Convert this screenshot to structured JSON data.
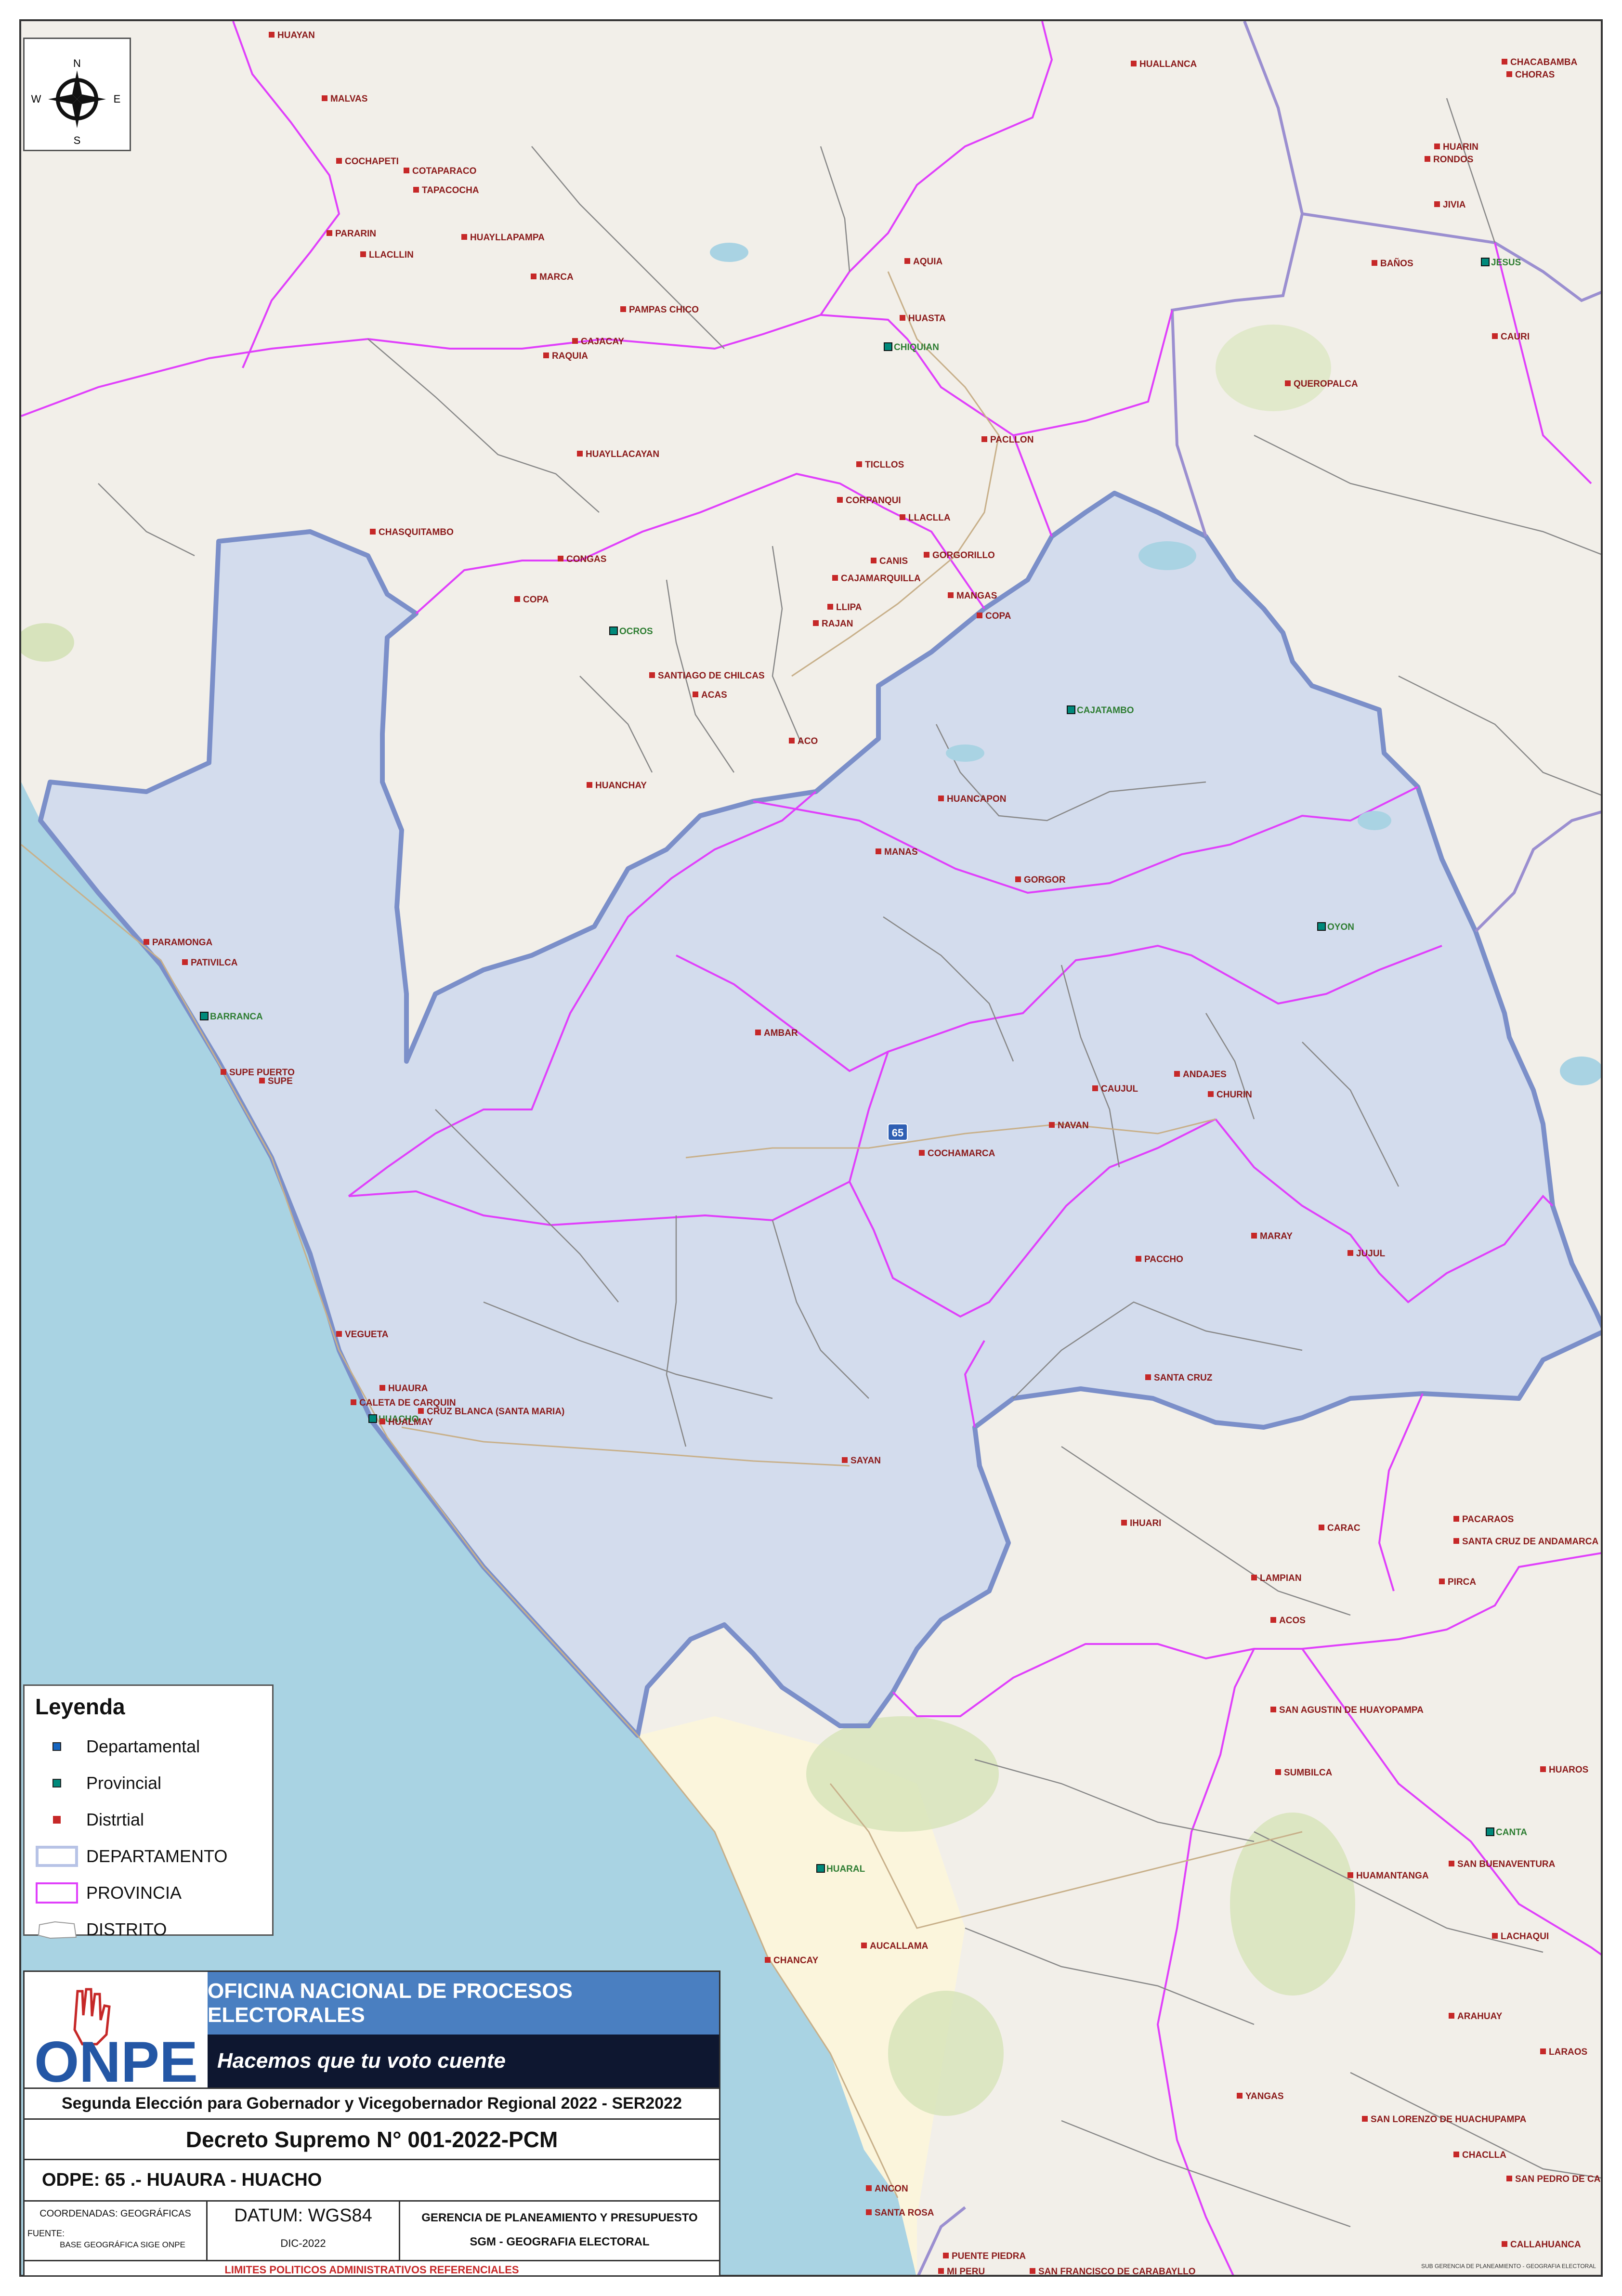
{
  "compass": {
    "n": "N",
    "s": "S",
    "e": "E",
    "w": "W"
  },
  "places": {
    "huayan": "HUAYAN",
    "malvas": "MALVAS",
    "cochapeti": "COCHAPETI",
    "cotaparaco": "COTAPARACO",
    "tapacocha": "TAPACOCHA",
    "pararin": "PARARIN",
    "llacllin": "LLACLLIN",
    "huayllapampa": "HUAYLLAPAMPA",
    "marca": "MARCA",
    "pampas_chico": "PAMPAS CHICO",
    "cajacay": "CAJACAY",
    "raquia": "RAQUIA",
    "huayllacayan": "HUAYLLACAYAN",
    "chasquitambo": "CHASQUITAMBO",
    "congas": "CONGAS",
    "copa_w": "COPA",
    "ocros": "OCROS",
    "santiago_chilcas": "SANTIAGO DE CHILCAS",
    "acas": "ACAS",
    "aco": "ACO",
    "huanchay": "HUANCHAY",
    "huallanca": "HUALLANCA",
    "aquia": "AQUIA",
    "huasta": "HUASTA",
    "chiquian": "CHIQUIAN",
    "pacllon": "PACLLON",
    "ticllos": "TICLLOS",
    "corpanqui": "CORPANQUI",
    "llaclla": "LLACLLA",
    "canis": "CANIS",
    "gorgorillo": "GORGORILLO",
    "cajamarquilla": "CAJAMARQUILLA",
    "mangas": "MANGAS",
    "copa_e": "COPA",
    "llipa": "LLIPA",
    "rajan": "RAJAN",
    "cajatambo": "CAJATAMBO",
    "huancapon": "HUANCAPON",
    "manas": "MANAS",
    "gorgor": "GORGOR",
    "oyon": "OYON",
    "chacabamba": "CHACABAMBA",
    "choras": "CHORAS",
    "huarin": "HUARIN",
    "rondos": "RONDOS",
    "jivia": "JIVIA",
    "jesus": "JESUS",
    "banos": "BAÑOS",
    "cauri": "CAURI",
    "queropalca": "QUEROPALCA",
    "paramonga": "PARAMONGA",
    "pativilca": "PATIVILCA",
    "barranca": "BARRANCA",
    "supe_puerto": "SUPE PUERTO",
    "supe": "SUPE",
    "ambar": "AMBAR",
    "caujul": "CAUJUL",
    "andajes": "ANDAJES",
    "churin": "CHURIN",
    "navan": "NAVAN",
    "cochamarca": "COCHAMARCA",
    "paccho": "PACCHO",
    "maray": "MARAY",
    "jujul": "JUJUL",
    "santa_cruz": "SANTA CRUZ",
    "vegueta": "VEGUETA",
    "huaura": "HUAURA",
    "caleta_carquin": "CALETA DE CARQUIN",
    "huacho": "HUACHO",
    "hualmay": "HUALMAY",
    "cruz_blanca": "CRUZ BLANCA (SANTA MARIA)",
    "sayan": "SAYAN",
    "ihuari": "IHUARI",
    "carac": "CARAC",
    "pacaraos": "PACARAOS",
    "santa_cruz_andamarca": "SANTA CRUZ DE ANDAMARCA",
    "lampian": "LAMPIAN",
    "pirca": "PIRCA",
    "acos": "ACOS",
    "san_agustin": "SAN AGUSTIN DE HUAYOPAMPA",
    "sumbilca": "SUMBILCA",
    "huaros": "HUAROS",
    "canta": "CANTA",
    "san_buenaventura": "SAN BUENAVENTURA",
    "huamantanga": "HUAMANTANGA",
    "huaral": "HUARAL",
    "aucallama": "AUCALLAMA",
    "chancay": "CHANCAY",
    "lachaqui": "LACHAQUI",
    "arahuay": "ARAHUAY",
    "laraos": "LARAOS",
    "yangas": "YANGAS",
    "san_lorenzo": "SAN LORENZO DE HUACHUPAMPA",
    "chaclla": "CHACLLA",
    "san_pedro_casta": "SAN PEDRO DE CASTA",
    "ancon": "ANCON",
    "santa_rosa": "SANTA ROSA",
    "callahuanca": "CALLAHUANCA",
    "puente_piedra": "PUENTE PIEDRA",
    "mi_peru": "MI PERU",
    "san_francisco_carabayllo": "SAN FRANCISCO DE CARABAYLLO"
  },
  "odpe_marker": "65",
  "sub_gerencia": "SUB GERENCIA DE PLANEAMIENTO - GEOGRAFIA ELECTORAL",
  "colors": {
    "departamental": "#1565c0",
    "provincial": "#00897b",
    "distrital": "#c62828",
    "departamento_line": "#7b8fc9",
    "provincia_line": "#e040fb",
    "distrito_line": "#888888",
    "region_fill": "#c8d6ee",
    "sea": "#a9d3e3",
    "accent": "#4a7fc1"
  },
  "legend": {
    "title": "Leyenda",
    "items": [
      {
        "label": "Departamental"
      },
      {
        "label": "Provincial"
      },
      {
        "label": "Distrtial"
      },
      {
        "label": "DEPARTAMENTO"
      },
      {
        "label": "PROVINCIA"
      },
      {
        "label": "DISTRITO"
      }
    ]
  },
  "title_block": {
    "logo": "ONPE",
    "org": "OFICINA NACIONAL DE PROCESOS ELECTORALES",
    "slogan": "Hacemos que tu voto cuente",
    "election": "Segunda Elección para Gobernador y Vicegobernador Regional 2022 - SER2022",
    "decree": "Decreto Supremo N° 001-2022-PCM",
    "odpe": "ODPE:   65 .- HUAURA - HUACHO",
    "coords": "COORDENADAS: GEOGRÁFICAS",
    "fuente": "FUENTE:",
    "fuente_value": "BASE GEOGRÁFICA SIGE ONPE",
    "datum": "DATUM: WGS84",
    "date": "DIC-2022",
    "gerencia": "GERENCIA DE PLANEAMIENTO Y PRESUPUESTO",
    "sgm": "SGM - GEOGRAFIA ELECTORAL",
    "limits": "LIMITES POLITICOS ADMINISTRATIVOS REFERENCIALES"
  }
}
